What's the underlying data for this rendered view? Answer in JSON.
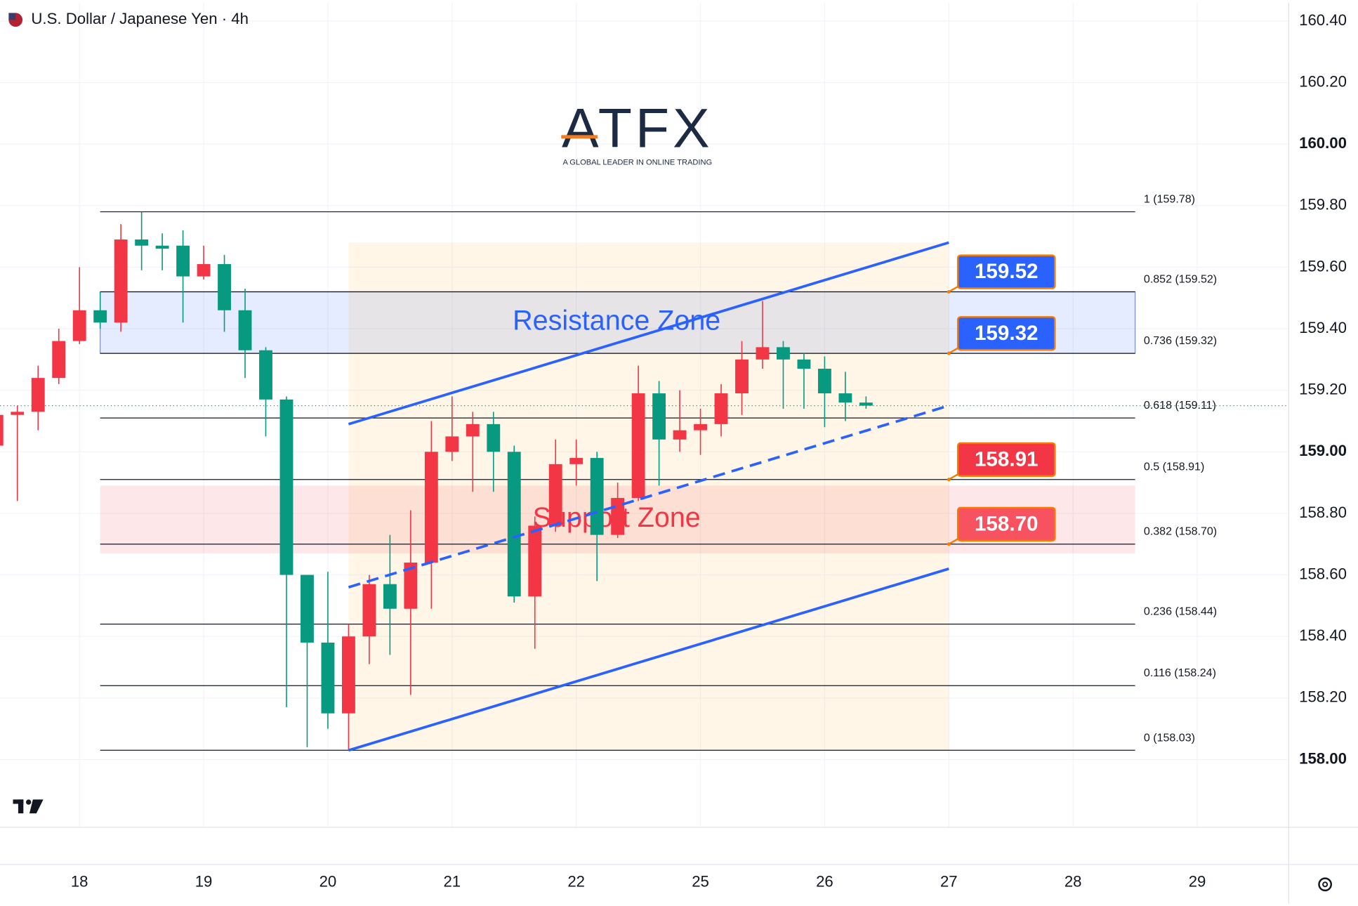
{
  "chart_data": {
    "type": "candlestick",
    "title": "U.S. Dollar / Japanese Yen · 4h",
    "logo": {
      "text": "ATFX",
      "tagline": "A GLOBAL LEADER IN ONLINE TRADING"
    },
    "up_color": "#f23645",
    "down_color": "#089981",
    "grid": true,
    "xlim": [
      -0.84,
      61.42
    ],
    "ylim": [
      157.78,
      160.46
    ],
    "xticks": [
      {
        "value": 3,
        "label": "18"
      },
      {
        "value": 9,
        "label": "19"
      },
      {
        "value": 15,
        "label": "20"
      },
      {
        "value": 21,
        "label": "21"
      },
      {
        "value": 27,
        "label": "22"
      },
      {
        "value": 33,
        "label": "25"
      },
      {
        "value": 39,
        "label": "26"
      },
      {
        "value": 45,
        "label": "27"
      },
      {
        "value": 51,
        "label": "28"
      },
      {
        "value": 57,
        "label": "29"
      }
    ],
    "yticks": [
      {
        "value": 160.4,
        "label": "160.40"
      },
      {
        "value": 160.2,
        "label": "160.20"
      },
      {
        "value": 160,
        "label": "160.00",
        "bold": true
      },
      {
        "value": 159.8,
        "label": "159.80"
      },
      {
        "value": 159.6,
        "label": "159.60"
      },
      {
        "value": 159.4,
        "label": "159.40"
      },
      {
        "value": 159.2,
        "label": "159.20"
      },
      {
        "value": 159,
        "label": "159.00",
        "bold": true
      },
      {
        "value": 158.8,
        "label": "158.80"
      },
      {
        "value": 158.6,
        "label": "158.60"
      },
      {
        "value": 158.4,
        "label": "158.40"
      },
      {
        "value": 158.2,
        "label": "158.20"
      },
      {
        "value": 158,
        "label": "158.00",
        "bold": true
      }
    ],
    "candles": {
      "x": [
        -1,
        0,
        1,
        2,
        3,
        4,
        5,
        6,
        7,
        8,
        9,
        10,
        11,
        12,
        13,
        14,
        15,
        16,
        17,
        18,
        19,
        20,
        21,
        22,
        23,
        24,
        25,
        26,
        27,
        28,
        29,
        30,
        31,
        32,
        33,
        34,
        35,
        36,
        37,
        38,
        39,
        40,
        41
      ],
      "open": [
        159.02,
        159.12,
        159.13,
        159.24,
        159.36,
        159.46,
        159.42,
        159.69,
        159.67,
        159.67,
        159.57,
        159.61,
        159.46,
        159.33,
        159.17,
        158.6,
        158.38,
        158.15,
        158.4,
        158.57,
        158.49,
        158.64,
        159.0,
        159.05,
        159.09,
        159.0,
        158.53,
        158.76,
        158.96,
        158.98,
        158.73,
        158.85,
        159.19,
        159.04,
        159.07,
        159.09,
        159.19,
        159.3,
        159.34,
        159.3,
        159.27,
        159.19,
        159.16
      ],
      "high": [
        159.14,
        159.15,
        159.28,
        159.4,
        159.6,
        159.52,
        159.74,
        159.78,
        159.71,
        159.72,
        159.67,
        159.64,
        159.53,
        159.34,
        159.18,
        158.6,
        158.61,
        158.44,
        158.6,
        158.73,
        158.81,
        159.1,
        159.18,
        159.13,
        159.13,
        159.02,
        158.79,
        159.04,
        159.04,
        159.0,
        158.9,
        159.28,
        159.23,
        159.2,
        159.14,
        159.22,
        159.36,
        159.49,
        159.36,
        159.32,
        159.31,
        159.26,
        159.18
      ],
      "low": [
        159.01,
        158.84,
        159.07,
        159.22,
        159.35,
        159.4,
        159.39,
        159.59,
        159.59,
        159.42,
        159.56,
        159.39,
        159.24,
        159.05,
        158.17,
        158.04,
        158.1,
        158.03,
        158.31,
        158.34,
        158.21,
        158.49,
        158.97,
        158.87,
        158.87,
        158.51,
        158.36,
        158.74,
        158.89,
        158.58,
        158.72,
        158.84,
        158.89,
        159.0,
        158.99,
        159.05,
        159.12,
        159.27,
        159.14,
        159.14,
        159.08,
        159.1,
        159.14
      ],
      "close": [
        159.12,
        159.13,
        159.24,
        159.36,
        159.46,
        159.42,
        159.69,
        159.67,
        159.66,
        159.57,
        159.61,
        159.46,
        159.33,
        159.17,
        158.6,
        158.38,
        158.15,
        158.4,
        158.57,
        158.49,
        158.64,
        159.0,
        159.05,
        159.09,
        159.0,
        158.53,
        158.76,
        158.96,
        158.98,
        158.73,
        158.85,
        159.19,
        159.04,
        159.07,
        159.09,
        159.19,
        159.3,
        159.34,
        159.3,
        159.27,
        159.19,
        159.16,
        159.15
      ]
    },
    "last_price": 159.15,
    "fib_levels": {
      "x": [
        4,
        54
      ],
      "levels": [
        {
          "value": 159.78,
          "label": "1 (159.78)"
        },
        {
          "value": 159.52,
          "label": "0.852 (159.52)"
        },
        {
          "value": 159.32,
          "label": "0.736 (159.32)"
        },
        {
          "value": 159.11,
          "label": "0.618 (159.11)"
        },
        {
          "value": 158.91,
          "label": "0.5 (158.91)"
        },
        {
          "value": 158.7,
          "label": "0.382 (158.70)"
        },
        {
          "value": 158.44,
          "label": "0.236 (158.44)"
        },
        {
          "value": 158.24,
          "label": "0.116 (158.24)"
        },
        {
          "value": 158.03,
          "label": "0 (158.03)"
        }
      ]
    },
    "zones": [
      {
        "label": "Resistance Zone",
        "low": 159.32,
        "high": 159.52,
        "fill": "rgba(41,98,255,0.12)",
        "text_color": "#2962ff"
      },
      {
        "label": "Support Zone",
        "low": 158.67,
        "high": 158.89,
        "fill": "rgba(242,54,69,0.12)",
        "text_color": "#f23645"
      }
    ],
    "channel": {
      "x": [
        16,
        45
      ],
      "upper": [
        159.09,
        159.68
      ],
      "middle": [
        158.56,
        159.15
      ],
      "lower": [
        158.03,
        158.62
      ],
      "color": "#2962ff"
    },
    "price_tags": [
      {
        "value": 159.52,
        "label": "159.52",
        "color": "#2962ff"
      },
      {
        "value": 159.32,
        "label": "159.32",
        "color": "#2962ff"
      },
      {
        "value": 158.91,
        "label": "158.91",
        "color": "#f23645"
      },
      {
        "value": 158.7,
        "label": "158.70",
        "color": "#f7525f"
      }
    ]
  }
}
